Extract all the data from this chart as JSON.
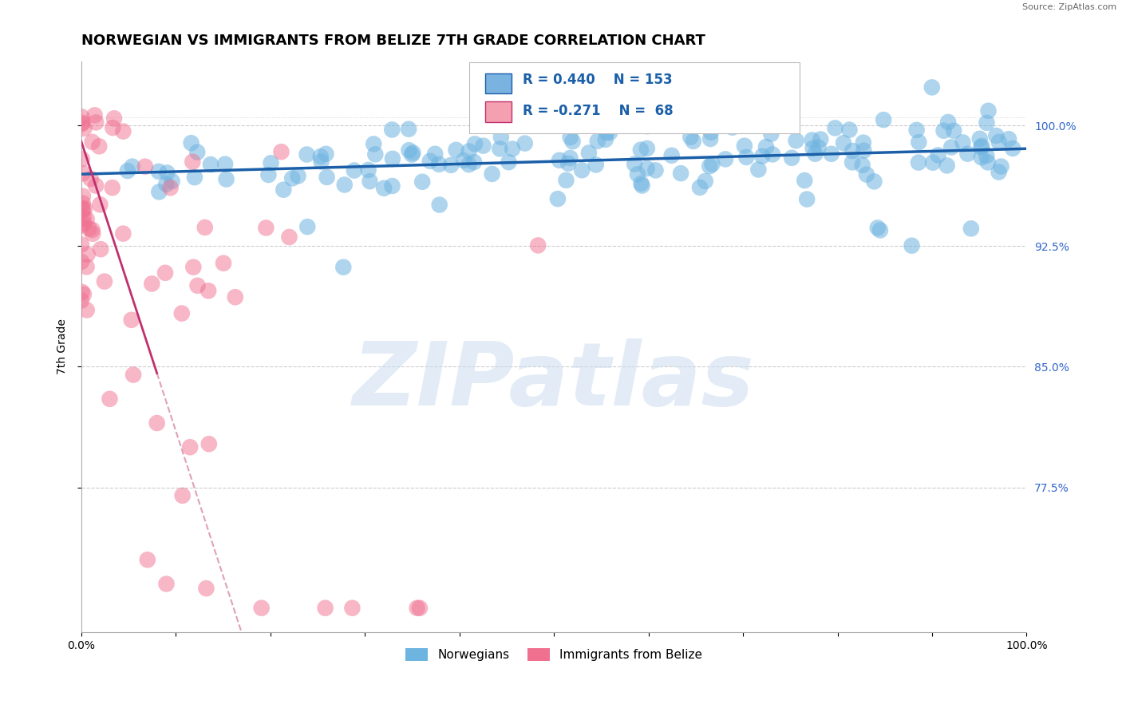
{
  "title": "NORWEGIAN VS IMMIGRANTS FROM BELIZE 7TH GRADE CORRELATION CHART",
  "source": "Source: ZipAtlas.com",
  "ylabel": "7th Grade",
  "watermark": "ZIPatlas",
  "xlim": [
    0.0,
    1.0
  ],
  "ylim": [
    0.685,
    1.04
  ],
  "yticks": [
    0.775,
    0.85,
    0.925,
    1.0
  ],
  "ytick_labels": [
    "77.5%",
    "85.0%",
    "92.5%",
    "100.0%"
  ],
  "xtick_labels": [
    "0.0%",
    "",
    "",
    "",
    "",
    "",
    "",
    "",
    "",
    "",
    "100.0%"
  ],
  "norwegian_color": "#6eb4e0",
  "belize_color": "#f07090",
  "norwegian_line_color": "#1a5fa8",
  "belize_line_solid_color": "#c0306e",
  "belize_line_dashed_color": "#e0a0b8",
  "R_norwegian": 0.44,
  "N_norwegian": 153,
  "R_belize": -0.271,
  "N_belize": 68,
  "legend_box_color_norwegian": "#7ab3e0",
  "legend_box_color_belize": "#f4a0b0",
  "legend_label_norwegian": "Norwegians",
  "legend_label_belize": "Immigrants from Belize",
  "title_fontsize": 13,
  "axis_label_fontsize": 10,
  "tick_fontsize": 10,
  "legend_fontsize": 11
}
